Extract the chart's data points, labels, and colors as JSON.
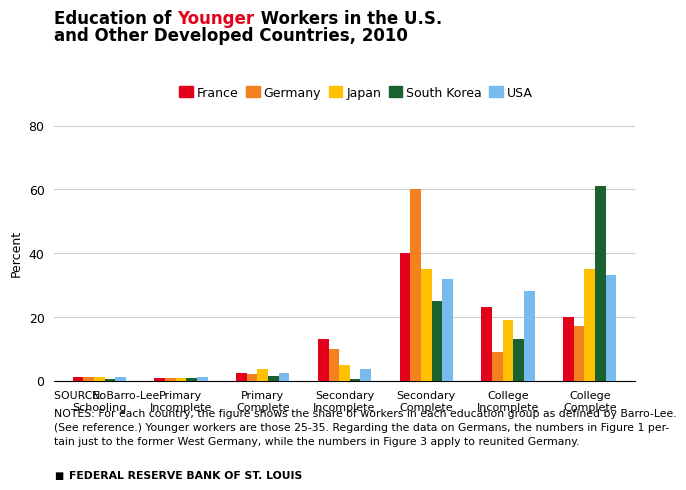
{
  "ylabel": "Percent",
  "ylim": [
    0,
    80
  ],
  "yticks": [
    0,
    20,
    40,
    60,
    80
  ],
  "categories": [
    "No\nSchooling",
    "Primary\nIncomplete",
    "Primary\nComplete",
    "Secondary\nIncomplete",
    "Secondary\nComplete",
    "College\nIncomplete",
    "College\nComplete"
  ],
  "countries": [
    "France",
    "Germany",
    "Japan",
    "South Korea",
    "USA"
  ],
  "colors": [
    "#e2001a",
    "#f4811f",
    "#ffc000",
    "#1a6130",
    "#77bbee"
  ],
  "data": {
    "France": [
      1.0,
      0.8,
      2.5,
      13.0,
      40.0,
      23.0,
      20.0
    ],
    "Germany": [
      1.2,
      0.8,
      2.0,
      10.0,
      60.0,
      9.0,
      17.0
    ],
    "Japan": [
      1.2,
      0.8,
      3.5,
      5.0,
      35.0,
      19.0,
      35.0
    ],
    "South Korea": [
      0.5,
      0.8,
      1.5,
      0.5,
      25.0,
      13.0,
      61.0
    ],
    "USA": [
      1.0,
      1.0,
      2.5,
      3.5,
      32.0,
      28.0,
      33.0
    ]
  },
  "source_text": "SOURCE: Barro-Lee.",
  "notes_line1": "NOTES: For each country, the figure shows the share of workers in each education group as defined by Barro-Lee.",
  "notes_line2": "(See reference.) Younger workers are those 25-35. Regarding the data on Germans, the numbers in Figure 1 per-",
  "notes_line3": "tain just to the former West Germany, while the numbers in Figure 3 apply to reunited Germany.",
  "footer_text": "FEDERAL RESERVE BANK OF ST. LOUIS",
  "background_color": "#ffffff",
  "grid_color": "#cccccc"
}
